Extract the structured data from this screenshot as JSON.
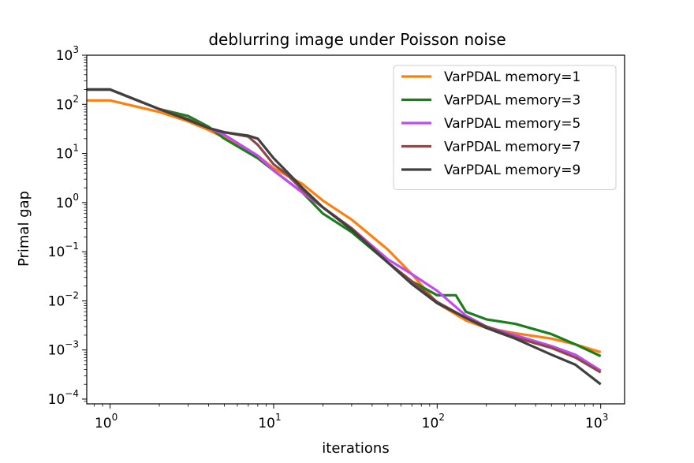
{
  "chart_data": {
    "type": "line",
    "title": "deblurring image under Poisson noise",
    "xlabel": "iterations",
    "ylabel": "Primal gap",
    "xscale": "log",
    "yscale": "log",
    "xlim": [
      0.72,
      1400
    ],
    "ylim": [
      8e-05,
      1000
    ],
    "xticks": [
      {
        "base": "10",
        "exp": "0",
        "value": 1
      },
      {
        "base": "10",
        "exp": "1",
        "value": 10
      },
      {
        "base": "10",
        "exp": "2",
        "value": 100
      },
      {
        "base": "10",
        "exp": "3",
        "value": 1000
      }
    ],
    "yticks": [
      {
        "base": "10",
        "exp": "−4",
        "value": 0.0001
      },
      {
        "base": "10",
        "exp": "−3",
        "value": 0.001
      },
      {
        "base": "10",
        "exp": "−2",
        "value": 0.01
      },
      {
        "base": "10",
        "exp": "−1",
        "value": 0.1
      },
      {
        "base": "10",
        "exp": "0",
        "value": 1
      },
      {
        "base": "10",
        "exp": "1",
        "value": 10
      },
      {
        "base": "10",
        "exp": "2",
        "value": 100
      },
      {
        "base": "10",
        "exp": "3",
        "value": 1000
      }
    ],
    "legend_position": "top-right",
    "series": [
      {
        "name": "VarPDAL memory=1",
        "color": "#ff7f0e",
        "x": [
          0.72,
          1,
          2,
          3,
          4,
          5,
          8,
          10,
          15,
          20,
          30,
          50,
          70,
          100,
          150,
          200,
          300,
          500,
          700,
          1000
        ],
        "y": [
          120,
          120,
          70,
          45,
          30,
          21,
          9,
          5,
          2.4,
          1.1,
          0.45,
          0.11,
          0.035,
          0.009,
          0.004,
          0.0028,
          0.0022,
          0.0017,
          0.0013,
          0.0009
        ]
      },
      {
        "name": "VarPDAL memory=3",
        "color": "#1a7f1a",
        "x": [
          0.72,
          1,
          2,
          3,
          4,
          5,
          8,
          10,
          15,
          20,
          30,
          50,
          70,
          100,
          130,
          150,
          200,
          300,
          500,
          700,
          1000
        ],
        "y": [
          200,
          200,
          80,
          58,
          35,
          20,
          8,
          4.5,
          1.6,
          0.6,
          0.25,
          0.06,
          0.025,
          0.013,
          0.013,
          0.006,
          0.0042,
          0.0034,
          0.0021,
          0.0013,
          0.00075
        ]
      },
      {
        "name": "VarPDAL memory=5",
        "color": "#c34af2",
        "x": [
          0.72,
          1,
          2,
          3,
          4,
          5,
          8,
          10,
          15,
          20,
          30,
          50,
          70,
          100,
          150,
          200,
          300,
          500,
          700,
          1000
        ],
        "y": [
          200,
          200,
          80,
          50,
          33,
          24,
          9,
          4.5,
          1.6,
          0.8,
          0.3,
          0.07,
          0.035,
          0.016,
          0.005,
          0.003,
          0.002,
          0.0012,
          0.0008,
          0.00038
        ]
      },
      {
        "name": "VarPDAL memory=7",
        "color": "#8c4a45",
        "x": [
          0.72,
          1,
          2,
          3,
          4,
          5,
          7,
          8,
          10,
          12,
          15,
          20,
          30,
          50,
          70,
          100,
          150,
          200,
          300,
          500,
          700,
          1000
        ],
        "y": [
          200,
          200,
          80,
          50,
          33,
          27,
          22,
          15,
          6,
          3.8,
          1.8,
          0.8,
          0.3,
          0.06,
          0.025,
          0.0095,
          0.0045,
          0.003,
          0.0018,
          0.0011,
          0.0007,
          0.00035
        ]
      },
      {
        "name": "VarPDAL memory=9",
        "color": "#404040",
        "x": [
          0.72,
          1,
          2,
          3,
          4,
          5,
          7,
          8,
          10,
          12,
          15,
          20,
          30,
          50,
          70,
          100,
          150,
          200,
          300,
          500,
          700,
          1000
        ],
        "y": [
          200,
          200,
          80,
          48,
          33,
          27,
          23,
          20,
          8,
          4.3,
          2,
          0.8,
          0.28,
          0.06,
          0.022,
          0.009,
          0.0045,
          0.0028,
          0.0017,
          0.0008,
          0.0005,
          0.0002
        ]
      }
    ]
  }
}
